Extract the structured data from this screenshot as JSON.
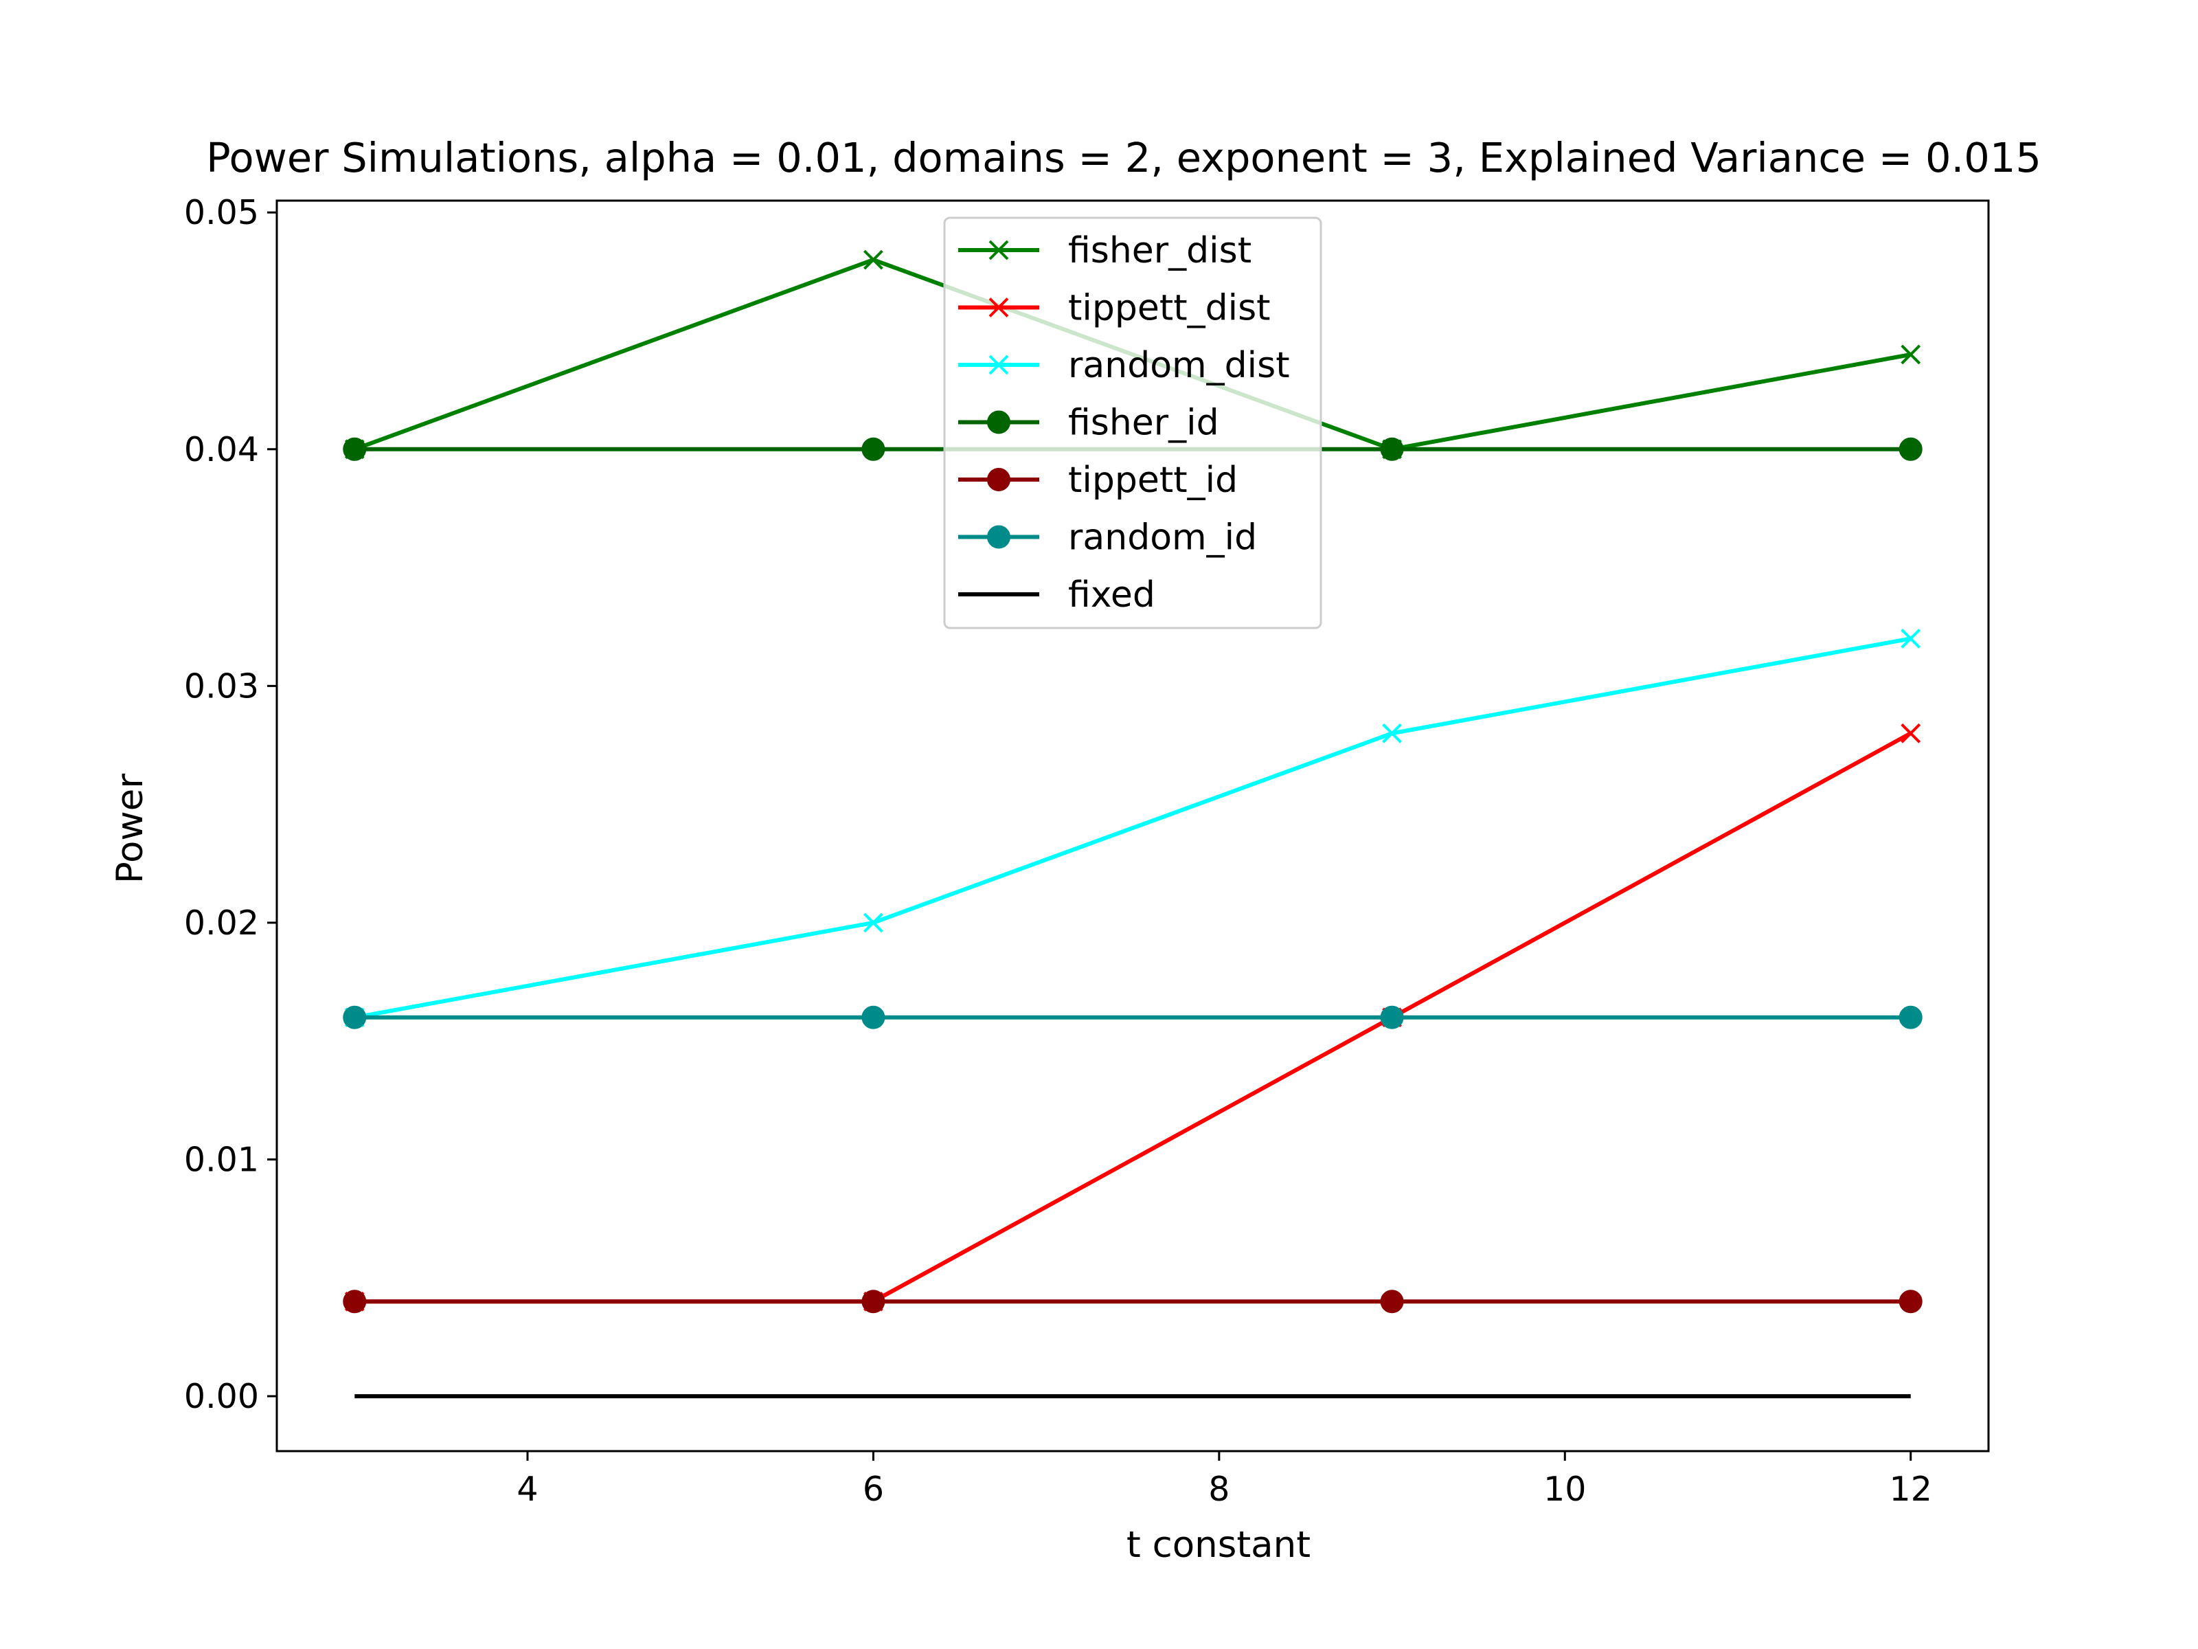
{
  "chart_data": {
    "type": "line",
    "title": "Power Simulations, alpha = 0.01, domains = 2, exponent = 3, Explained Variance = 0.015",
    "xlabel": "t constant",
    "ylabel": "Power",
    "xlim": [
      2.55,
      12.45
    ],
    "ylim": [
      -0.00232,
      0.0505
    ],
    "xticks": [
      4,
      6,
      8,
      10,
      12
    ],
    "xtick_labels": [
      "4",
      "6",
      "8",
      "10",
      "12"
    ],
    "yticks": [
      0.0,
      0.01,
      0.02,
      0.03,
      0.04,
      0.05
    ],
    "ytick_labels": [
      "0.00",
      "0.01",
      "0.02",
      "0.03",
      "0.04",
      "0.05"
    ],
    "grid": false,
    "legend_position": "top-center",
    "x": [
      3,
      6,
      9,
      12
    ],
    "series": [
      {
        "name": "fisher_dist",
        "values": [
          0.04,
          0.048,
          0.04,
          0.044
        ],
        "color": "#008000",
        "marker": "x"
      },
      {
        "name": "tippett_dist",
        "values": [
          0.004,
          0.004,
          0.016,
          0.028
        ],
        "color": "#ff0000",
        "marker": "x"
      },
      {
        "name": "random_dist",
        "values": [
          0.016,
          0.02,
          0.028,
          0.032
        ],
        "color": "#00ffff",
        "marker": "x"
      },
      {
        "name": "fisher_id",
        "values": [
          0.04,
          0.04,
          0.04,
          0.04
        ],
        "color": "#006400",
        "marker": "o"
      },
      {
        "name": "tippett_id",
        "values": [
          0.004,
          0.004,
          0.004,
          0.004
        ],
        "color": "#8b0000",
        "marker": "o"
      },
      {
        "name": "random_id",
        "values": [
          0.016,
          0.016,
          0.016,
          0.016
        ],
        "color": "#008b8b",
        "marker": "o"
      },
      {
        "name": "fixed",
        "values": [
          0.0,
          0.0,
          0.0,
          0.0
        ],
        "color": "#000000",
        "marker": "none"
      }
    ]
  }
}
